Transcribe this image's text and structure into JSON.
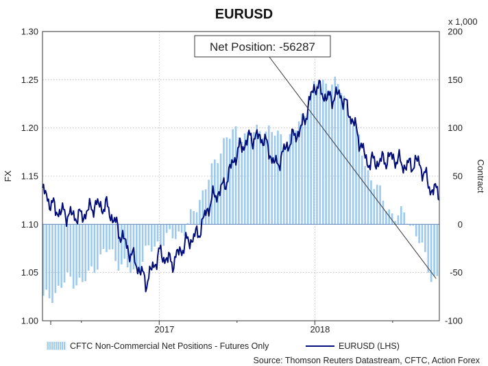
{
  "chart_data": {
    "type": "bar+line",
    "title": "EURUSD",
    "left_axis": {
      "label": "FX",
      "min": 1.0,
      "max": 1.3,
      "ticks": [
        "1.00",
        "1.05",
        "1.10",
        "1.15",
        "1.20",
        "1.25",
        "1.30"
      ]
    },
    "right_axis": {
      "label": "Contract",
      "unit": "x 1,000",
      "min": -100,
      "max": 200,
      "ticks": [
        "-100",
        "-50",
        "0",
        "50",
        "100",
        "150",
        "200"
      ]
    },
    "x_axis": {
      "start": "2016-04",
      "end": "2018-10",
      "tick_labels": [
        "2017",
        "2018"
      ]
    },
    "grid": true,
    "annotation": {
      "text": "Net Position: -56287",
      "value": -56287
    },
    "series": [
      {
        "name": "CFTC Non-Commercial Net Positions - Futures Only",
        "type": "bar",
        "axis": "right",
        "color": "#9ccaee",
        "points": [
          [
            "2016-04",
            -78
          ],
          [
            "2016-05",
            -70
          ],
          [
            "2016-06",
            -55
          ],
          [
            "2016-07",
            -62
          ],
          [
            "2016-08",
            -42
          ],
          [
            "2016-09",
            -25
          ],
          [
            "2016-10",
            -42
          ],
          [
            "2016-11",
            -50
          ],
          [
            "2016-12",
            -28
          ],
          [
            "2017-01",
            -18
          ],
          [
            "2017-02",
            -12
          ],
          [
            "2017-03",
            -5
          ],
          [
            "2017-04",
            25
          ],
          [
            "2017-05",
            55
          ],
          [
            "2017-06",
            90
          ],
          [
            "2017-07",
            95
          ],
          [
            "2017-08",
            92
          ],
          [
            "2017-09",
            100
          ],
          [
            "2017-10",
            92
          ],
          [
            "2017-11",
            88
          ],
          [
            "2017-12",
            112
          ],
          [
            "2018-01",
            145
          ],
          [
            "2018-02",
            148
          ],
          [
            "2018-03",
            140
          ],
          [
            "2018-04",
            102
          ],
          [
            "2018-05",
            55
          ],
          [
            "2018-06",
            30
          ],
          [
            "2018-07",
            8
          ],
          [
            "2018-08",
            10
          ],
          [
            "2018-09",
            -18
          ],
          [
            "2018-10",
            -56
          ]
        ]
      },
      {
        "name": "EURUSD (LHS)",
        "type": "line",
        "axis": "left",
        "color": "#000c7a",
        "points": [
          [
            "2016-04",
            1.135
          ],
          [
            "2016-05",
            1.115
          ],
          [
            "2016-06",
            1.11
          ],
          [
            "2016-07",
            1.108
          ],
          [
            "2016-08",
            1.12
          ],
          [
            "2016-09",
            1.118
          ],
          [
            "2016-10",
            1.09
          ],
          [
            "2016-11",
            1.065
          ],
          [
            "2016-12",
            1.04
          ],
          [
            "2017-01",
            1.07
          ],
          [
            "2017-02",
            1.06
          ],
          [
            "2017-03",
            1.08
          ],
          [
            "2017-04",
            1.09
          ],
          [
            "2017-05",
            1.125
          ],
          [
            "2017-06",
            1.14
          ],
          [
            "2017-07",
            1.175
          ],
          [
            "2017-08",
            1.19
          ],
          [
            "2017-09",
            1.19
          ],
          [
            "2017-10",
            1.16
          ],
          [
            "2017-11",
            1.185
          ],
          [
            "2017-12",
            1.2
          ],
          [
            "2018-01",
            1.245
          ],
          [
            "2018-02",
            1.23
          ],
          [
            "2018-03",
            1.235
          ],
          [
            "2018-04",
            1.205
          ],
          [
            "2018-05",
            1.165
          ],
          [
            "2018-06",
            1.165
          ],
          [
            "2018-07",
            1.17
          ],
          [
            "2018-08",
            1.16
          ],
          [
            "2018-09",
            1.165
          ],
          [
            "2018-10",
            1.135
          ]
        ]
      }
    ],
    "source": "Source: Thomson Reuters Datastream, CFTC, Action Forex"
  },
  "legend": {
    "bars": "CFTC Non-Commercial Net Positions - Futures Only",
    "line": "EURUSD (LHS)"
  }
}
